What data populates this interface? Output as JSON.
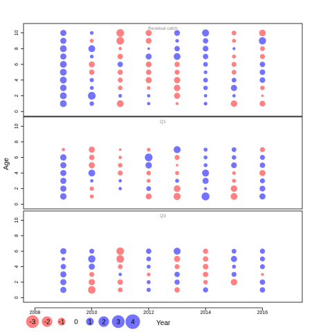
{
  "chart_data": {
    "type": "scatter",
    "ylabel": "Age",
    "xlabel": "Year",
    "xlim": [
      2007.6,
      2017.4
    ],
    "ylim": [
      -0.6,
      11.2
    ],
    "x_ticks": [
      2008,
      2010,
      2012,
      2014,
      2016
    ],
    "y_ticks": [
      0,
      2,
      4,
      6,
      8,
      10
    ],
    "grid": false,
    "colors": {
      "positive": "#5b5bff",
      "negative": "#ff6b6b"
    },
    "legend": {
      "placement": "bottom",
      "values": [
        -3,
        -2,
        -1,
        0,
        1,
        2,
        3,
        4
      ]
    },
    "panels": [
      {
        "title": "Residual catch",
        "points": [
          [
            2009,
            1,
            2.0
          ],
          [
            2009,
            2,
            2.0
          ],
          [
            2009,
            3,
            1.8
          ],
          [
            2009,
            4,
            2.0
          ],
          [
            2009,
            5,
            2.0
          ],
          [
            2009,
            6,
            2.0
          ],
          [
            2009,
            7,
            1.6
          ],
          [
            2009,
            8,
            2.0
          ],
          [
            2009,
            9,
            1.6
          ],
          [
            2009,
            10,
            1.6
          ],
          [
            2010,
            1,
            0.8
          ],
          [
            2010,
            2,
            2.6
          ],
          [
            2010,
            3,
            0.6
          ],
          [
            2010,
            4,
            0.7
          ],
          [
            2010,
            5,
            -1.2
          ],
          [
            2010,
            6,
            -1.5
          ],
          [
            2010,
            7,
            0.5
          ],
          [
            2010,
            8,
            2.0
          ],
          [
            2010,
            9,
            -0.6
          ],
          [
            2010,
            10,
            0.5
          ],
          [
            2011,
            1,
            -2.0
          ],
          [
            2011,
            2,
            0.5
          ],
          [
            2011,
            3,
            -0.8
          ],
          [
            2011,
            4,
            -1.0
          ],
          [
            2011,
            5,
            -1.1
          ],
          [
            2011,
            6,
            1.2
          ],
          [
            2011,
            7,
            -1.2
          ],
          [
            2011,
            8,
            -0.4
          ],
          [
            2011,
            9,
            -2.5
          ],
          [
            2011,
            10,
            -2.6
          ],
          [
            2012,
            1,
            0.4
          ],
          [
            2012,
            2,
            0.4
          ],
          [
            2012,
            3,
            -0.5
          ],
          [
            2012,
            4,
            -1.6
          ],
          [
            2012,
            5,
            -1.2
          ],
          [
            2012,
            6,
            -1.4
          ],
          [
            2012,
            7,
            1.5
          ],
          [
            2012,
            8,
            0.2
          ],
          [
            2012,
            9,
            -1.4
          ],
          [
            2012,
            10,
            -1.6
          ],
          [
            2013,
            1,
            -0.3
          ],
          [
            2013,
            2,
            -1.6
          ],
          [
            2013,
            3,
            -1.8
          ],
          [
            2013,
            4,
            -1.7
          ],
          [
            2013,
            5,
            -1.0
          ],
          [
            2013,
            6,
            -1.1
          ],
          [
            2013,
            7,
            2.0
          ],
          [
            2013,
            8,
            1.2
          ],
          [
            2013,
            9,
            0.5
          ],
          [
            2013,
            10,
            1.4
          ],
          [
            2014,
            1,
            0.5
          ],
          [
            2014,
            2,
            0.4
          ],
          [
            2014,
            3,
            0.8
          ],
          [
            2014,
            4,
            0.9
          ],
          [
            2014,
            5,
            0.5
          ],
          [
            2014,
            6,
            0.9
          ],
          [
            2014,
            7,
            1.2
          ],
          [
            2014,
            8,
            1.4
          ],
          [
            2014,
            9,
            1.2
          ],
          [
            2014,
            10,
            2.2
          ],
          [
            2015,
            1,
            -1.8
          ],
          [
            2015,
            2,
            0.4
          ],
          [
            2015,
            3,
            1.6
          ],
          [
            2015,
            4,
            0.9
          ],
          [
            2015,
            5,
            -0.9
          ],
          [
            2015,
            6,
            -1.0
          ],
          [
            2015,
            7,
            -0.6
          ],
          [
            2015,
            8,
            0.3
          ],
          [
            2015,
            9,
            -0.6
          ],
          [
            2015,
            10,
            -0.9
          ],
          [
            2016,
            1,
            -1.4
          ],
          [
            2016,
            2,
            -0.2
          ],
          [
            2016,
            3,
            -0.8
          ],
          [
            2016,
            4,
            1.3
          ],
          [
            2016,
            5,
            1.3
          ],
          [
            2016,
            6,
            1.2
          ],
          [
            2016,
            7,
            -1.0
          ],
          [
            2016,
            8,
            -0.9
          ],
          [
            2016,
            9,
            2.3
          ],
          [
            2016,
            10,
            -1.9
          ]
        ]
      },
      {
        "title": "Q1",
        "points": [
          [
            2009,
            1,
            1.8
          ],
          [
            2009,
            2,
            1.6
          ],
          [
            2009,
            3,
            1.6
          ],
          [
            2009,
            4,
            1.6
          ],
          [
            2009,
            5,
            1.6
          ],
          [
            2009,
            6,
            1.7
          ],
          [
            2009,
            7,
            -0.4
          ],
          [
            2010,
            1,
            -0.6
          ],
          [
            2010,
            2,
            -0.7
          ],
          [
            2010,
            3,
            0.4
          ],
          [
            2010,
            4,
            2.0
          ],
          [
            2010,
            5,
            -1.6
          ],
          [
            2010,
            6,
            -1.2
          ],
          [
            2010,
            7,
            -1.6
          ],
          [
            2011,
            2,
            0.4
          ],
          [
            2011,
            3,
            0.4
          ],
          [
            2011,
            4,
            -1.0
          ],
          [
            2011,
            5,
            -0.8
          ],
          [
            2011,
            6,
            -0.4
          ],
          [
            2011,
            7,
            -0.2
          ],
          [
            2012,
            1,
            -1.5
          ],
          [
            2012,
            2,
            0.9
          ],
          [
            2012,
            3,
            -0.6
          ],
          [
            2012,
            4,
            -0.8
          ],
          [
            2012,
            5,
            1.8
          ],
          [
            2012,
            6,
            2.6
          ],
          [
            2012,
            7,
            -0.5
          ],
          [
            2013,
            1,
            -2.2
          ],
          [
            2013,
            2,
            -1.9
          ],
          [
            2013,
            3,
            0.6
          ],
          [
            2013,
            4,
            -0.6
          ],
          [
            2013,
            5,
            -0.2
          ],
          [
            2013,
            6,
            -1.0
          ],
          [
            2013,
            7,
            2.1
          ],
          [
            2014,
            1,
            2.8
          ],
          [
            2014,
            2,
            0.3
          ],
          [
            2014,
            3,
            1.6
          ],
          [
            2014,
            4,
            2.1
          ],
          [
            2014,
            5,
            0.6
          ],
          [
            2014,
            6,
            0.6
          ],
          [
            2014,
            7,
            0.6
          ],
          [
            2015,
            1,
            -2.0
          ],
          [
            2015,
            2,
            -1.8
          ],
          [
            2015,
            3,
            -0.6
          ],
          [
            2015,
            4,
            -0.5
          ],
          [
            2015,
            5,
            1.4
          ],
          [
            2015,
            6,
            0.8
          ],
          [
            2015,
            7,
            0.9
          ],
          [
            2016,
            1,
            1.6
          ],
          [
            2016,
            2,
            1.4
          ],
          [
            2016,
            3,
            1.0
          ],
          [
            2016,
            4,
            -1.6
          ],
          [
            2016,
            5,
            1.2
          ],
          [
            2016,
            6,
            1.0
          ],
          [
            2016,
            7,
            -1.0
          ]
        ]
      },
      {
        "title": "Q3",
        "points": [
          [
            2009,
            1,
            1.6
          ],
          [
            2009,
            2,
            1.6
          ],
          [
            2009,
            3,
            1.6
          ],
          [
            2009,
            4,
            1.2
          ],
          [
            2009,
            5,
            0.5
          ],
          [
            2009,
            6,
            1.6
          ],
          [
            2010,
            1,
            -2.5
          ],
          [
            2010,
            2,
            -1.7
          ],
          [
            2010,
            3,
            -1.0
          ],
          [
            2010,
            4,
            1.6
          ],
          [
            2010,
            5,
            2.3
          ],
          [
            2010,
            6,
            1.0
          ],
          [
            2011,
            1,
            -0.9
          ],
          [
            2011,
            2,
            -1.2
          ],
          [
            2011,
            3,
            0.4
          ],
          [
            2011,
            4,
            -0.9
          ],
          [
            2011,
            5,
            -2.5
          ],
          [
            2011,
            6,
            -2.5
          ],
          [
            2012,
            1,
            0.7
          ],
          [
            2012,
            2,
            0.6
          ],
          [
            2012,
            3,
            -0.5
          ],
          [
            2012,
            4,
            0.6
          ],
          [
            2012,
            5,
            0.9
          ],
          [
            2012,
            6,
            1.2
          ],
          [
            2013,
            1,
            -1.2
          ],
          [
            2013,
            2,
            1.1
          ],
          [
            2013,
            3,
            1.2
          ],
          [
            2013,
            4,
            -1.0
          ],
          [
            2013,
            5,
            -1.6
          ],
          [
            2013,
            6,
            2.1
          ],
          [
            2014,
            1,
            1.1
          ],
          [
            2014,
            2,
            -0.8
          ],
          [
            2014,
            3,
            -1.2
          ],
          [
            2014,
            4,
            -1.3
          ],
          [
            2014,
            5,
            -1.2
          ],
          [
            2014,
            6,
            -1.1
          ],
          [
            2015,
            2,
            -1.8
          ],
          [
            2015,
            3,
            1.0
          ],
          [
            2015,
            4,
            0.6
          ],
          [
            2015,
            5,
            1.6
          ],
          [
            2015,
            6,
            0.9
          ],
          [
            2016,
            1,
            1.2
          ],
          [
            2016,
            2,
            1.2
          ],
          [
            2016,
            3,
            -0.3
          ],
          [
            2016,
            4,
            1.0
          ],
          [
            2016,
            5,
            1.0
          ],
          [
            2016,
            6,
            1.1
          ]
        ]
      }
    ]
  }
}
